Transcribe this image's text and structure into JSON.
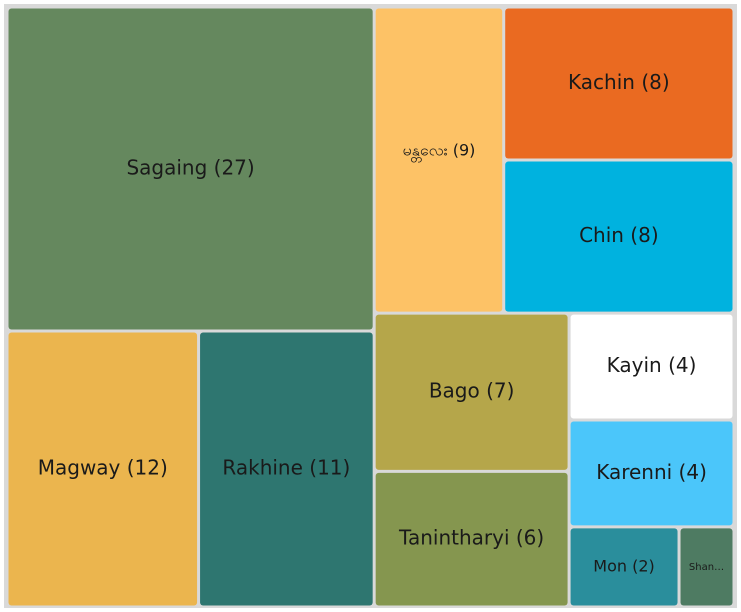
{
  "chart_data": {
    "type": "treemap",
    "categories": [
      "Sagaing (27)",
      "Magway (12)",
      "Rakhine (11)",
      "မန္တလေး (9)",
      "Kachin (8)",
      "Chin (8)",
      "Bago (7)",
      "Tanintharyi (6)",
      "Kayin (4)",
      "Karenni (4)",
      "Mon (2)",
      "Shan…"
    ],
    "values": [
      27,
      12,
      11,
      9,
      8,
      8,
      7,
      6,
      4,
      4,
      2,
      1
    ],
    "colors": [
      "#65885e",
      "#ebb54e",
      "#2e7670",
      "#fdc266",
      "#ea6a21",
      "#00b2df",
      "#b5a64a",
      "#85964f",
      "#ffffff",
      "#4bc6fa",
      "#2a8e9c",
      "#4e7b62"
    ]
  }
}
